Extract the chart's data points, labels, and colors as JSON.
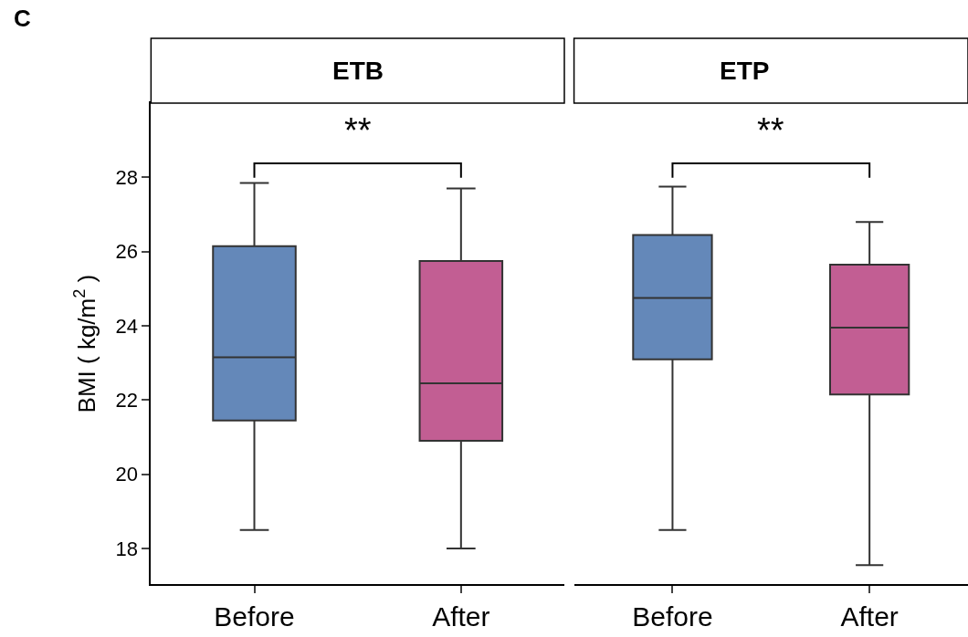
{
  "chart_data": [
    {
      "type": "box",
      "title": "ETB",
      "ylabel": "BMI ( kg/m$^{2}$ )",
      "categories": [
        "Before",
        "After"
      ],
      "colors": [
        "#6488b9",
        "#c25e93"
      ],
      "boxes": [
        {
          "low": 18.5,
          "q1": 21.45,
          "median": 23.15,
          "q3": 26.15,
          "high": 27.85
        },
        {
          "low": 18.0,
          "q1": 20.9,
          "median": 22.45,
          "q3": 25.75,
          "high": 27.7
        }
      ],
      "ylim": [
        17.04,
        30
      ],
      "yticks": [
        18,
        20,
        22,
        24,
        26,
        28
      ],
      "annotations": [
        "C",
        "**"
      ],
      "legend": false
    },
    {
      "type": "box",
      "title": "ETP",
      "categories": [
        "Before",
        "After"
      ],
      "colors": [
        "#6488b9",
        "#c25e93"
      ],
      "boxes": [
        {
          "low": 18.5,
          "q1": 23.1,
          "median": 24.75,
          "q3": 26.45,
          "high": 27.75
        },
        {
          "low": 17.55,
          "q1": 22.15,
          "median": 23.95,
          "q3": 25.65,
          "high": 26.8
        }
      ],
      "ylim": [
        17.04,
        30
      ],
      "yticks": [
        18,
        20,
        22,
        24,
        26,
        28
      ],
      "tick_labels": "x",
      "annotations": [
        "**"
      ],
      "legend": false
    }
  ]
}
